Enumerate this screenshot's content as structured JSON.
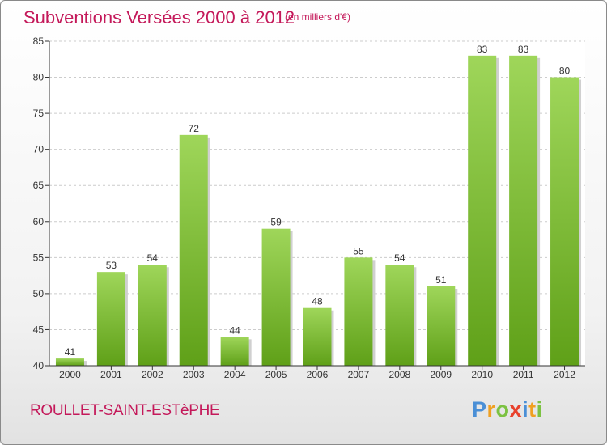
{
  "title": "Subventions Versées 2000 à 2012",
  "subtitle": "(en milliers d'€)",
  "location": "ROULLET-SAINT-ESTèPHE",
  "logo": {
    "text": "Proxiti",
    "letters": [
      {
        "char": "P",
        "color": "#4a8fd6"
      },
      {
        "char": "r",
        "color": "#f0a020"
      },
      {
        "char": "o",
        "color": "#7cc242"
      },
      {
        "char": "x",
        "color": "#e8412c"
      },
      {
        "char": "i",
        "color": "#4a8fd6"
      },
      {
        "char": "t",
        "color": "#f0a020"
      },
      {
        "char": "i",
        "color": "#7cc242"
      }
    ]
  },
  "colors": {
    "accent": "#c4195a",
    "bar_top": "#9fd65a",
    "bar_bottom": "#5fa018",
    "grid": "#cccccc",
    "axis": "#333333"
  },
  "chart_data": {
    "type": "bar",
    "categories": [
      "2000",
      "2001",
      "2002",
      "2003",
      "2004",
      "2005",
      "2006",
      "2007",
      "2008",
      "2009",
      "2010",
      "2011",
      "2012"
    ],
    "values": [
      41,
      53,
      54,
      72,
      44,
      59,
      48,
      55,
      54,
      51,
      83,
      83,
      80
    ],
    "yticks": [
      40,
      45,
      50,
      55,
      60,
      65,
      70,
      75,
      80,
      85
    ],
    "ylim": [
      40,
      85
    ],
    "grid": true,
    "data_labels": true
  }
}
